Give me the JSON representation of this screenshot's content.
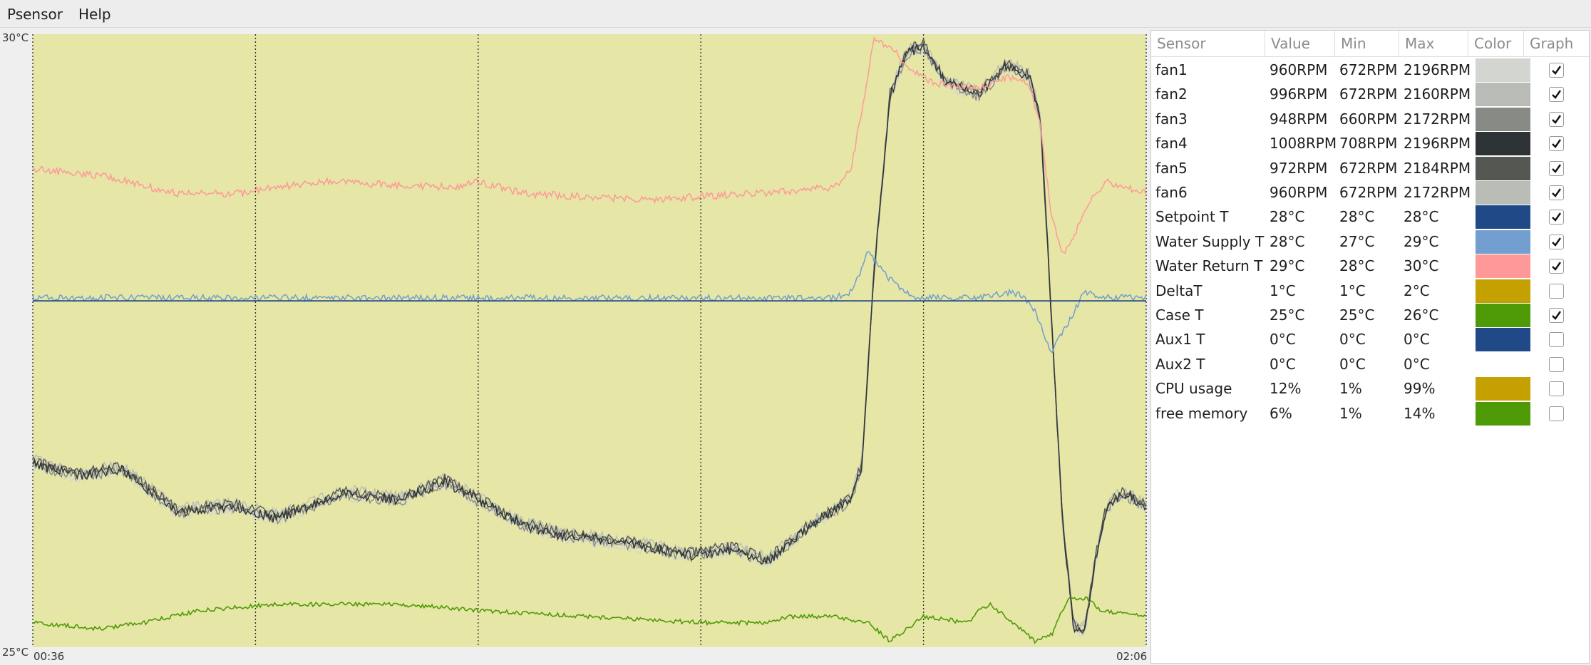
{
  "menu": {
    "items": [
      "Psensor",
      "Help"
    ]
  },
  "graph": {
    "y_max_label": "30°C",
    "y_min_label": "25°C",
    "x_start_label": "00:36",
    "x_end_label": "02:06",
    "background": "#e6e6a6"
  },
  "table": {
    "headers": {
      "sensor": "Sensor",
      "value": "Value",
      "min": "Min",
      "max": "Max",
      "color": "Color",
      "graph": "Graph"
    },
    "rows": [
      {
        "sensor": "fan1",
        "value": "960RPM",
        "min": "672RPM",
        "max": "2196RPM",
        "color": "#d3d6d0",
        "graph": true
      },
      {
        "sensor": "fan2",
        "value": "996RPM",
        "min": "672RPM",
        "max": "2160RPM",
        "color": "#b8bbb6",
        "graph": true
      },
      {
        "sensor": "fan3",
        "value": "948RPM",
        "min": "660RPM",
        "max": "2172RPM",
        "color": "#888a85",
        "graph": true
      },
      {
        "sensor": "fan4",
        "value": "1008RPM",
        "min": "708RPM",
        "max": "2196RPM",
        "color": "#2e3436",
        "graph": true
      },
      {
        "sensor": "fan5",
        "value": "972RPM",
        "min": "672RPM",
        "max": "2184RPM",
        "color": "#555753",
        "graph": true
      },
      {
        "sensor": "fan6",
        "value": "960RPM",
        "min": "672RPM",
        "max": "2172RPM",
        "color": "#babdb6",
        "graph": true
      },
      {
        "sensor": "Setpoint T",
        "value": "28°C",
        "min": "28°C",
        "max": "28°C",
        "color": "#204a87",
        "graph": true
      },
      {
        "sensor": "Water Supply T",
        "value": "28°C",
        "min": "27°C",
        "max": "29°C",
        "color": "#729fcf",
        "graph": true
      },
      {
        "sensor": "Water Return T",
        "value": "29°C",
        "min": "28°C",
        "max": "30°C",
        "color": "#ff9999",
        "graph": true
      },
      {
        "sensor": "DeltaT",
        "value": "1°C",
        "min": "1°C",
        "max": "2°C",
        "color": "#c4a000",
        "graph": false
      },
      {
        "sensor": "Case T",
        "value": "25°C",
        "min": "25°C",
        "max": "26°C",
        "color": "#4e9a06",
        "graph": true
      },
      {
        "sensor": "Aux1 T",
        "value": "0°C",
        "min": "0°C",
        "max": "0°C",
        "color": "#204a87",
        "graph": false
      },
      {
        "sensor": "Aux2 T",
        "value": "0°C",
        "min": "0°C",
        "max": "0°C",
        "color": "#ffffff",
        "graph": false
      },
      {
        "sensor": "CPU usage",
        "value": "12%",
        "min": "1%",
        "max": "99%",
        "color": "#c4a000",
        "graph": false
      },
      {
        "sensor": "free memory",
        "value": "6%",
        "min": "1%",
        "max": "14%",
        "color": "#4e9a06",
        "graph": false
      }
    ]
  }
}
